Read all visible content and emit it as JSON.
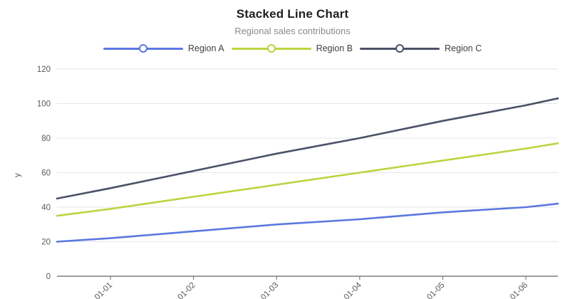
{
  "chart_data": {
    "type": "line",
    "title": "Stacked Line Chart",
    "subtitle": "Regional sales contributions",
    "ylabel": "y",
    "x": [
      "01-01",
      "01-02",
      "01-03",
      "01-04",
      "01-05",
      "01-06"
    ],
    "y_ticks": [
      0,
      20,
      40,
      60,
      80,
      100,
      120
    ],
    "ylim": [
      0,
      130
    ],
    "grid": "horizontal-only",
    "legend_position": "top-center",
    "stacked": true,
    "series": [
      {
        "name": "Region A",
        "color": "#5b78e0",
        "edge_start": 20,
        "values": [
          22,
          26,
          30,
          33,
          37,
          40
        ],
        "edge_end": 42
      },
      {
        "name": "Region B",
        "color": "#bcd43e",
        "edge_start": 35,
        "values": [
          39,
          46,
          53,
          60,
          67,
          74
        ],
        "edge_end": 77
      },
      {
        "name": "Region C",
        "color": "#4b5266",
        "edge_start": 45,
        "values": [
          51,
          61,
          71,
          80,
          90,
          99
        ],
        "edge_end": 103
      }
    ]
  },
  "colors": {
    "grid_line": "#e6e6e6",
    "axis_line": "#7f7f7f",
    "tick_label": "#5a5a5a",
    "axis_title": "#5a5a5a"
  }
}
